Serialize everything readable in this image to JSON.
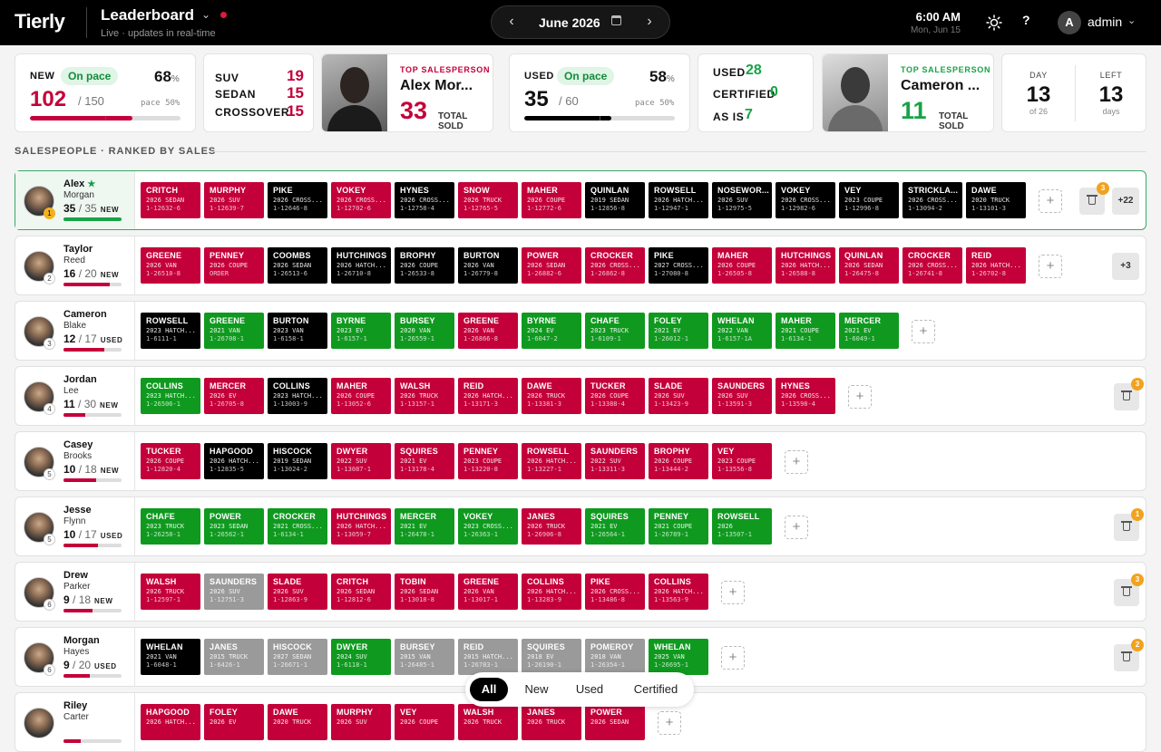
{
  "header": {
    "logo": "Tierly",
    "title": "Leaderboard",
    "subtitle": "Live · updates in real-time",
    "month": "June 2026",
    "time": "6:00 AM",
    "date": "Mon, Jun 15",
    "user_initial": "A",
    "user_name": "admin"
  },
  "colors": {
    "red": "#c4003a",
    "black": "#000000",
    "green": "#0f9a1f",
    "gray": "#9a9a9a",
    "accent_green": "#17a346",
    "badge": "#f2a21e"
  },
  "stats": {
    "new": {
      "label": "NEW",
      "status": "On pace",
      "pct": "68",
      "pct_sign": "%",
      "value": "102",
      "of": "/ 150",
      "pace": "pace 50%",
      "progress": 0.68
    },
    "types": [
      {
        "label": "SUV",
        "value": "19"
      },
      {
        "label": "SEDAN",
        "value": "15"
      },
      {
        "label": "CROSSOVER",
        "value": "15"
      }
    ],
    "top_new": {
      "label": "TOP SALESPERSON",
      "name": "Alex Mor...",
      "sold": "33",
      "sold_label": "TOTAL SOLD"
    },
    "used": {
      "label": "USED",
      "status": "On pace",
      "pct": "58",
      "pct_sign": "%",
      "value": "35",
      "of": "/ 60",
      "pace": "pace 50%",
      "progress": 0.58
    },
    "used_types": [
      {
        "label": "USED",
        "value": "28"
      },
      {
        "label": "CERTIFIED",
        "value": "0"
      },
      {
        "label": "AS IS",
        "value": "7"
      }
    ],
    "top_used": {
      "label": "TOP SALESPERSON",
      "name": "Cameron ...",
      "sold": "11",
      "sold_label": "TOTAL SOLD"
    },
    "day": {
      "label": "DAY",
      "value": "13",
      "sub": "of 26"
    },
    "left": {
      "label": "LEFT",
      "value": "13",
      "sub": "days"
    }
  },
  "section_title": "SALESPEOPLE · RANKED BY SALES",
  "filters": [
    {
      "label": "All",
      "active": true
    },
    {
      "label": "New",
      "active": false
    },
    {
      "label": "Used",
      "active": false
    },
    {
      "label": "Certified",
      "active": false
    }
  ],
  "salespeople": [
    {
      "first": "Alex",
      "last": "Morgan",
      "star": "★",
      "rank": "1",
      "count": "35",
      "of": "/ 35",
      "type": "NEW",
      "progress": 1.0,
      "leader": true,
      "trash": "3",
      "more": "+22",
      "deals": [
        [
          "CRITCH",
          "2026 SEDAN",
          "1-12632-6",
          "r"
        ],
        [
          "MURPHY",
          "2026 SUV",
          "1-12639-7",
          "r"
        ],
        [
          "PIKE",
          "2026 CROSS...",
          "1-12646-8",
          "b"
        ],
        [
          "VOKEY",
          "2026 CROSS...",
          "1-12702-6",
          "r"
        ],
        [
          "HYNES",
          "2026 CROSS...",
          "1-12758-4",
          "b"
        ],
        [
          "SNOW",
          "2026 TRUCK",
          "1-12765-5",
          "r"
        ],
        [
          "MAHER",
          "2026 COUPE",
          "1-12772-6",
          "r"
        ],
        [
          "QUINLAN",
          "2019 SEDAN",
          "1-12856-8",
          "b"
        ],
        [
          "ROWSELL",
          "2026 HATCH...",
          "1-12947-1",
          "b"
        ],
        [
          "NOSEWOR...",
          "2026 SUV",
          "1-12975-5",
          "b"
        ],
        [
          "VOKEY",
          "2026 CROSS...",
          "1-12982-6",
          "b"
        ],
        [
          "VEY",
          "2023 COUPE",
          "1-12996-8",
          "b"
        ],
        [
          "STRICKLA...",
          "2026 CROSS...",
          "1-13094-2",
          "b"
        ],
        [
          "DAWE",
          "2020 TRUCK",
          "1-13101-3",
          "b"
        ]
      ]
    },
    {
      "first": "Taylor",
      "last": "Reed",
      "star": "",
      "rank": "2",
      "count": "16",
      "of": "/ 20",
      "type": "NEW",
      "progress": 0.8,
      "leader": false,
      "trash": "",
      "more": "+3",
      "deals": [
        [
          "GREENE",
          "2026 VAN",
          "1-26510-8",
          "r"
        ],
        [
          "PENNEY",
          "2026 COUPE",
          "ORDER",
          "r"
        ],
        [
          "COOMBS",
          "2026 SEDAN",
          "1-26513-6",
          "b"
        ],
        [
          "HUTCHINGS",
          "2026 HATCH...",
          "1-26710-8",
          "b"
        ],
        [
          "BROPHY",
          "2026 COUPE",
          "1-26533-8",
          "b"
        ],
        [
          "BURTON",
          "2026 VAN",
          "1-26779-8",
          "b"
        ],
        [
          "POWER",
          "2026 SEDAN",
          "1-26882-6",
          "r"
        ],
        [
          "CROCKER",
          "2026 CROSS...",
          "1-26862-8",
          "r"
        ],
        [
          "PIKE",
          "2027 CROSS...",
          "1-27080-8",
          "b"
        ],
        [
          "MAHER",
          "2026 COUPE",
          "1-26505-8",
          "r"
        ],
        [
          "HUTCHINGS",
          "2026 HATCH...",
          "1-26588-8",
          "r"
        ],
        [
          "QUINLAN",
          "2026 SEDAN",
          "1-26475-8",
          "r"
        ],
        [
          "CROCKER",
          "2026 CROSS...",
          "1-26741-8",
          "r"
        ],
        [
          "REID",
          "2026 HATCH...",
          "1-26702-8",
          "r"
        ]
      ]
    },
    {
      "first": "Cameron",
      "last": "Blake",
      "star": "",
      "rank": "3",
      "count": "12",
      "of": "/ 17",
      "type": "USED",
      "progress": 0.7,
      "leader": false,
      "trash": "",
      "more": "",
      "deals": [
        [
          "ROWSELL",
          "2023 HATCH...",
          "1-6111-1",
          "b"
        ],
        [
          "GREENE",
          "2021 VAN",
          "1-26708-1",
          "g"
        ],
        [
          "BURTON",
          "2023 VAN",
          "1-6158-1",
          "b"
        ],
        [
          "BYRNE",
          "2023 EV",
          "1-6157-1",
          "g"
        ],
        [
          "BURSEY",
          "2020 VAN",
          "1-26559-1",
          "g"
        ],
        [
          "GREENE",
          "2026 VAN",
          "1-26866-8",
          "r"
        ],
        [
          "BYRNE",
          "2024 EV",
          "1-6047-2",
          "g"
        ],
        [
          "CHAFE",
          "2023 TRUCK",
          "1-6109-1",
          "g"
        ],
        [
          "FOLEY",
          "2021 EV",
          "1-26012-1",
          "g"
        ],
        [
          "WHELAN",
          "2022 VAN",
          "1-6157-1A",
          "g"
        ],
        [
          "MAHER",
          "2021 COUPE",
          "1-6134-1",
          "g"
        ],
        [
          "MERCER",
          "2021 EV",
          "1-6049-1",
          "g"
        ]
      ]
    },
    {
      "first": "Jordan",
      "last": "Lee",
      "star": "",
      "rank": "4",
      "count": "11",
      "of": "/ 30",
      "type": "NEW",
      "progress": 0.37,
      "leader": false,
      "trash": "3",
      "more": "",
      "deals": [
        [
          "COLLINS",
          "2023 HATCH...",
          "1-26506-1",
          "g"
        ],
        [
          "MERCER",
          "2026 EV",
          "1-26705-8",
          "r"
        ],
        [
          "COLLINS",
          "2023 HATCH...",
          "1-13003-9",
          "b"
        ],
        [
          "MAHER",
          "2026 COUPE",
          "1-13052-6",
          "r"
        ],
        [
          "WALSH",
          "2026 TRUCK",
          "1-13157-1",
          "r"
        ],
        [
          "REID",
          "2026 HATCH...",
          "1-13171-3",
          "r"
        ],
        [
          "DAWE",
          "2026 TRUCK",
          "1-13381-3",
          "r"
        ],
        [
          "TUCKER",
          "2026 COUPE",
          "1-13388-4",
          "r"
        ],
        [
          "SLADE",
          "2026 SUV",
          "1-13423-9",
          "r"
        ],
        [
          "SAUNDERS",
          "2026 SUV",
          "1-13591-3",
          "r"
        ],
        [
          "HYNES",
          "2026 CROSS...",
          "1-13598-4",
          "r"
        ]
      ]
    },
    {
      "first": "Casey",
      "last": "Brooks",
      "star": "",
      "rank": "5",
      "count": "10",
      "of": "/ 18",
      "type": "NEW",
      "progress": 0.56,
      "leader": false,
      "trash": "",
      "more": "",
      "deals": [
        [
          "TUCKER",
          "2026 COUPE",
          "1-12820-4",
          "r"
        ],
        [
          "HAPGOOD",
          "2026 HATCH...",
          "1-12835-5",
          "b"
        ],
        [
          "HISCOCK",
          "2019 SEDAN",
          "1-13024-2",
          "b"
        ],
        [
          "DWYER",
          "2022 SUV",
          "1-13087-1",
          "r"
        ],
        [
          "SQUIRES",
          "2021 EV",
          "1-13178-4",
          "r"
        ],
        [
          "PENNEY",
          "2023 COUPE",
          "1-13220-8",
          "r"
        ],
        [
          "ROWSELL",
          "2026 HATCH...",
          "1-13227-1",
          "r"
        ],
        [
          "SAUNDERS",
          "2022 SUV",
          "1-13311-3",
          "r"
        ],
        [
          "BROPHY",
          "2026 COUPE",
          "1-13444-2",
          "r"
        ],
        [
          "VEY",
          "2023 COUPE",
          "1-13556-8",
          "r"
        ]
      ]
    },
    {
      "first": "Jesse",
      "last": "Flynn",
      "star": "",
      "rank": "5",
      "count": "10",
      "of": "/ 17",
      "type": "USED",
      "progress": 0.59,
      "leader": false,
      "trash": "1",
      "more": "",
      "deals": [
        [
          "CHAFE",
          "2023 TRUCK",
          "1-26258-1",
          "g"
        ],
        [
          "POWER",
          "2023 SEDAN",
          "1-26562-1",
          "g"
        ],
        [
          "CROCKER",
          "2021 CROSS...",
          "1-6134-1",
          "g"
        ],
        [
          "HUTCHINGS",
          "2026 HATCH...",
          "1-13059-7",
          "r"
        ],
        [
          "MERCER",
          "2021 EV",
          "1-26478-1",
          "g"
        ],
        [
          "VOKEY",
          "2023 CROSS...",
          "1-26363-1",
          "g"
        ],
        [
          "JANES",
          "2026 TRUCK",
          "1-26906-8",
          "r"
        ],
        [
          "SQUIRES",
          "2021 EV",
          "1-26564-1",
          "g"
        ],
        [
          "PENNEY",
          "2021 COUPE",
          "1-26789-1",
          "g"
        ],
        [
          "ROWSELL",
          "2026",
          "1-13507-1",
          "g"
        ]
      ]
    },
    {
      "first": "Drew",
      "last": "Parker",
      "star": "",
      "rank": "6",
      "count": "9",
      "of": "/ 18",
      "type": "NEW",
      "progress": 0.5,
      "leader": false,
      "trash": "3",
      "more": "",
      "deals": [
        [
          "WALSH",
          "2026 TRUCK",
          "1-12597-1",
          "r"
        ],
        [
          "SAUNDERS",
          "2026 SUV",
          "1-12751-3",
          "x"
        ],
        [
          "SLADE",
          "2026 SUV",
          "1-12863-9",
          "r"
        ],
        [
          "CRITCH",
          "2026 SEDAN",
          "1-12812-6",
          "r"
        ],
        [
          "TOBIN",
          "2026 SEDAN",
          "1-13018-8",
          "r"
        ],
        [
          "GREENE",
          "2026 VAN",
          "1-13017-1",
          "r"
        ],
        [
          "COLLINS",
          "2026 HATCH...",
          "1-13283-9",
          "r"
        ],
        [
          "PIKE",
          "2026 CROSS...",
          "1-13486-8",
          "r"
        ],
        [
          "COLLINS",
          "2026 HATCH...",
          "1-13563-9",
          "r"
        ]
      ]
    },
    {
      "first": "Morgan",
      "last": "Hayes",
      "star": "",
      "rank": "6",
      "count": "9",
      "of": "/ 20",
      "type": "USED",
      "progress": 0.45,
      "leader": false,
      "trash": "2",
      "more": "",
      "deals": [
        [
          "WHELAN",
          "2021 VAN",
          "1-6048-1",
          "b"
        ],
        [
          "JANES",
          "2015 TRUCK",
          "1-6426-1",
          "x"
        ],
        [
          "HISCOCK",
          "2027 SEDAN",
          "1-26671-1",
          "x"
        ],
        [
          "DWYER",
          "2024 SUV",
          "1-6118-1",
          "g"
        ],
        [
          "BURSEY",
          "2015 VAN",
          "1-26485-1",
          "x"
        ],
        [
          "REID",
          "2015 HATCH...",
          "1-26783-1",
          "x"
        ],
        [
          "SQUIRES",
          "2018 EV",
          "1-26190-1",
          "x"
        ],
        [
          "POMEROY",
          "2018 VAN",
          "1-26354-1",
          "x"
        ],
        [
          "WHELAN",
          "2025 VAN",
          "1-26695-1",
          "g"
        ]
      ]
    },
    {
      "first": "Riley",
      "last": "Carter",
      "star": "",
      "rank": "",
      "count": "",
      "of": "",
      "type": "",
      "progress": 0.3,
      "leader": false,
      "trash": "",
      "more": "",
      "deals": [
        [
          "HAPGOOD",
          "2026 HATCH...",
          "",
          "r"
        ],
        [
          "FOLEY",
          "2026 EV",
          "",
          "r"
        ],
        [
          "DAWE",
          "2020 TRUCK",
          "",
          "r"
        ],
        [
          "MURPHY",
          "2026 SUV",
          "",
          "r"
        ],
        [
          "VEY",
          "2026 COUPE",
          "",
          "r"
        ],
        [
          "WALSH",
          "2026 TRUCK",
          "",
          "r"
        ],
        [
          "JANES",
          "2026 TRUCK",
          "",
          "r"
        ],
        [
          "POWER",
          "2026 SEDAN",
          "",
          "r"
        ]
      ]
    }
  ]
}
